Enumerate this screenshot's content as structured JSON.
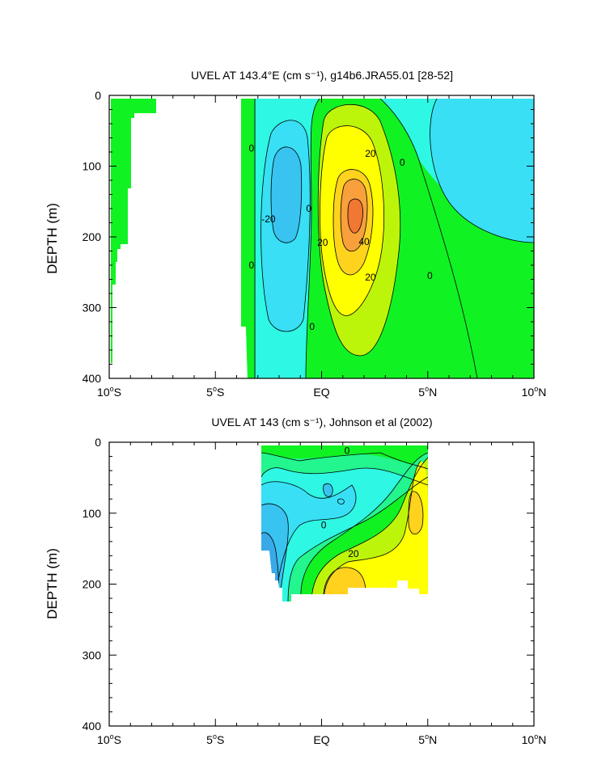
{
  "chart_data": [
    {
      "type": "contour",
      "title": "UVEL AT 143.4°E (cm s⁻¹), g14b6.JRA55.01 [28-52]",
      "ylabel": "DEPTH (m)",
      "xlim": [
        -10,
        10
      ],
      "ylim": [
        400,
        0
      ],
      "x_ticks": [
        -10,
        -5,
        0,
        5,
        10
      ],
      "x_tick_labels": [
        "10°S",
        "5°S",
        "EQ",
        "5°N",
        "10°N"
      ],
      "y_ticks": [
        0,
        100,
        200,
        300,
        400
      ],
      "y_tick_labels": [
        "0",
        "100",
        "200",
        "300",
        "400"
      ],
      "contour_labels": [
        {
          "text": "0",
          "lat": -3.3,
          "depth": 75
        },
        {
          "text": "-20",
          "lat": -2.5,
          "depth": 175
        },
        {
          "text": "0",
          "lat": -0.6,
          "depth": 160
        },
        {
          "text": "20",
          "lat": 2.3,
          "depth": 82
        },
        {
          "text": "0",
          "lat": 3.8,
          "depth": 95
        },
        {
          "text": "20",
          "lat": 0.05,
          "depth": 208
        },
        {
          "text": "40",
          "lat": 2.0,
          "depth": 207
        },
        {
          "text": "20",
          "lat": 2.3,
          "depth": 257
        },
        {
          "text": "0",
          "lat": 5.1,
          "depth": 255
        },
        {
          "text": "0",
          "lat": -3.3,
          "depth": 240
        },
        {
          "text": "0",
          "lat": -0.45,
          "depth": 327
        }
      ],
      "core_max_cm_s": 40
    },
    {
      "type": "contour",
      "title": "UVEL AT 143 (cm s⁻¹), Johnson et al (2002)",
      "ylabel": "DEPTH (m)",
      "xlim": [
        -10,
        10
      ],
      "ylim": [
        400,
        0
      ],
      "x_ticks": [
        -10,
        -5,
        0,
        5,
        10
      ],
      "x_tick_labels": [
        "10°S",
        "5°S",
        "EQ",
        "5°N",
        "10°N"
      ],
      "y_ticks": [
        0,
        100,
        200,
        300,
        400
      ],
      "y_tick_labels": [
        "0",
        "100",
        "200",
        "300",
        "400"
      ],
      "data_extent_lat": [
        -2.8,
        5.0
      ],
      "data_extent_depth": [
        5,
        225
      ],
      "contour_labels": [
        {
          "text": "0",
          "lat": 1.2,
          "depth": 12
        },
        {
          "text": "0",
          "lat": 0.1,
          "depth": 117
        },
        {
          "text": "20",
          "lat": 1.5,
          "depth": 157
        }
      ]
    }
  ],
  "colors": {
    "neg40": "#3aa9e8",
    "neg30": "#39c3f0",
    "neg20": "#38dff5",
    "neg10": "#2ef7e3",
    "zero": "#23f58f",
    "pos10": "#11f223",
    "pos20": "#bdf50a",
    "pos30": "#ffff00",
    "pos40": "#ffd21e",
    "pos50": "#f7a03c",
    "pos60": "#f07832"
  }
}
